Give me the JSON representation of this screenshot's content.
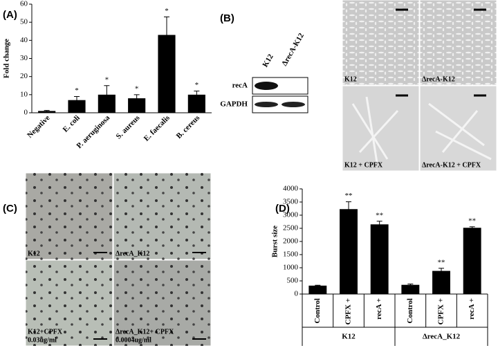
{
  "panels": {
    "a": "(A)",
    "b": "(B)",
    "c": "(C)",
    "d": "(D)"
  },
  "blot": {
    "lanes": [
      "K12",
      "ΔrecA-K12"
    ],
    "rows": [
      "recA",
      "GAPDH"
    ]
  },
  "micrographs": [
    "K12",
    "ΔrecA-K12",
    "K12 + CPFX",
    "ΔrecA-K12 + CPFX"
  ],
  "plates": [
    {
      "label": "K12"
    },
    {
      "label": "ΔrecA_K12"
    },
    {
      "label": "K12+CPFX",
      "dose": "0.03ug/ml"
    },
    {
      "label": "ΔrecA_K12+ CPFX",
      "dose": "0.0004ug/ml"
    }
  ],
  "chart_data": [
    {
      "type": "bar",
      "y_label": "Fold change",
      "categories": [
        "Negative",
        "E. coli",
        "P. aeruginosa",
        "S. aureus",
        "E. faecalis",
        "B. cereus"
      ],
      "values": [
        1,
        7,
        10,
        8,
        43,
        10
      ],
      "errors": [
        0.3,
        2,
        5,
        2,
        10,
        2
      ],
      "annotations": [
        null,
        "*",
        "*",
        "*",
        "*",
        "*"
      ],
      "color": "#000000",
      "ylim": [
        0,
        60
      ],
      "yticks": [
        0,
        10,
        20,
        30,
        40,
        50,
        60
      ]
    },
    {
      "type": "bar",
      "y_label": "Burst size",
      "categories": [
        "Control",
        "CPFX +",
        "recA +",
        "Control",
        "CPFX +",
        "recA +"
      ],
      "group_labels": [
        "K12",
        "ΔrecA_K12"
      ],
      "values": [
        320,
        3230,
        2650,
        350,
        880,
        2520
      ],
      "errors": [
        15,
        280,
        120,
        30,
        100,
        40
      ],
      "annotations": [
        null,
        "**",
        "**",
        null,
        "**",
        "**"
      ],
      "color": "#000000",
      "ylim": [
        0,
        4000
      ],
      "yticks": [
        0,
        500,
        1000,
        1500,
        2000,
        2500,
        3000,
        3500,
        4000
      ]
    }
  ]
}
